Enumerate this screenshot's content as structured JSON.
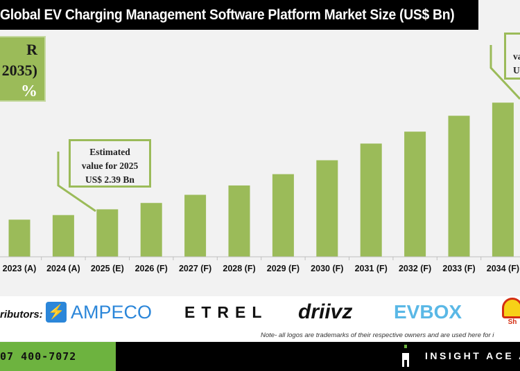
{
  "title": "Global EV Charging Management Software Platform Market Size (US$ Bn)",
  "cagr_box": {
    "line1": "R",
    "line2": "2035)",
    "line3": "%"
  },
  "callouts": {
    "left": [
      "Estimated",
      "value for 2025",
      "US$ 2.39 Bn"
    ],
    "right": [
      "va",
      "U"
    ]
  },
  "chart_data": {
    "type": "bar",
    "title": "Global EV Charging Management Software Platform Market Size (US$ Bn)",
    "categories": [
      "2023 (A)",
      "2024 (A)",
      "2025 (E)",
      "2026 (F)",
      "2027 (F)",
      "2028 (F)",
      "2029 (F)",
      "2030 (F)",
      "2031 (F)",
      "2032 (F)",
      "2033 (F)",
      "2034 (F)"
    ],
    "values": [
      1.87,
      2.1,
      2.39,
      2.71,
      3.12,
      3.59,
      4.16,
      4.86,
      5.7,
      6.3,
      7.1,
      7.76
    ],
    "bar_color": "#9bbb59",
    "grid": false
  },
  "contributors": {
    "label": "ributors:",
    "logos": [
      "AMPECO",
      "ETREL",
      "driivz",
      "EVBOX",
      "Sh"
    ]
  },
  "note": "Note- all logos are trademarks of their respective owners and are used here for i",
  "footer": {
    "phone": "07 400-7072",
    "brand": "INSIGHT ACE A",
    "green": "#6db33f"
  }
}
